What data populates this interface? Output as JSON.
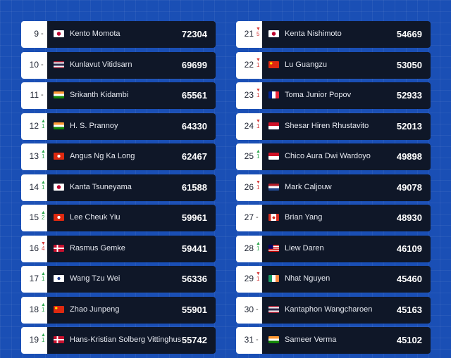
{
  "rankings": {
    "left": [
      {
        "rank": "9",
        "change": {
          "dir": "none",
          "text": "-"
        },
        "flag": "jp",
        "name": "Kento Momota",
        "points": "72304"
      },
      {
        "rank": "10",
        "change": {
          "dir": "none",
          "text": "-"
        },
        "flag": "th",
        "name": "Kunlavut Vitidsarn",
        "points": "69699"
      },
      {
        "rank": "11",
        "change": {
          "dir": "none",
          "text": "-"
        },
        "flag": "in",
        "name": "Srikanth Kidambi",
        "points": "65561"
      },
      {
        "rank": "12",
        "change": {
          "dir": "up",
          "text": "1"
        },
        "flag": "in",
        "name": "H. S. Prannoy",
        "points": "64330"
      },
      {
        "rank": "13",
        "change": {
          "dir": "up",
          "text": "1"
        },
        "flag": "hk",
        "name": "Angus Ng Ka Long",
        "points": "62467"
      },
      {
        "rank": "14",
        "change": {
          "dir": "up",
          "text": "1"
        },
        "flag": "jp",
        "name": "Kanta Tsuneyama",
        "points": "61588"
      },
      {
        "rank": "15",
        "change": {
          "dir": "up",
          "text": "2"
        },
        "flag": "hk",
        "name": "Lee Cheuk Yiu",
        "points": "59961"
      },
      {
        "rank": "16",
        "change": {
          "dir": "down",
          "text": "4"
        },
        "flag": "dk",
        "name": "Rasmus Gemke",
        "points": "59441"
      },
      {
        "rank": "17",
        "change": {
          "dir": "up",
          "text": "1"
        },
        "flag": "tw",
        "name": "Wang Tzu Wei",
        "points": "56336"
      },
      {
        "rank": "18",
        "change": {
          "dir": "up",
          "text": "1"
        },
        "flag": "cn",
        "name": "Zhao Junpeng",
        "points": "55901"
      },
      {
        "rank": "19",
        "change": {
          "dir": "up",
          "text": "1"
        },
        "flag": "dk",
        "name": "Hans-Kristian Solberg Vittinghus",
        "points": "55742"
      }
    ],
    "right": [
      {
        "rank": "21",
        "change": {
          "dir": "down",
          "text": "5"
        },
        "flag": "jp",
        "name": "Kenta Nishimoto",
        "points": "54669"
      },
      {
        "rank": "22",
        "change": {
          "dir": "down",
          "text": "1"
        },
        "flag": "cn",
        "name": "Lu Guangzu",
        "points": "53050"
      },
      {
        "rank": "23",
        "change": {
          "dir": "down",
          "text": "1"
        },
        "flag": "fr",
        "name": "Toma Junior Popov",
        "points": "52933"
      },
      {
        "rank": "24",
        "change": {
          "dir": "down",
          "text": "1"
        },
        "flag": "id",
        "name": "Shesar Hiren Rhustavito",
        "points": "52013"
      },
      {
        "rank": "25",
        "change": {
          "dir": "up",
          "text": "1"
        },
        "flag": "id",
        "name": "Chico Aura Dwi Wardoyo",
        "points": "49898"
      },
      {
        "rank": "26",
        "change": {
          "dir": "down",
          "text": "1"
        },
        "flag": "nl",
        "name": "Mark Caljouw",
        "points": "49078"
      },
      {
        "rank": "27",
        "change": {
          "dir": "none",
          "text": "-"
        },
        "flag": "ca",
        "name": "Brian Yang",
        "points": "48930"
      },
      {
        "rank": "28",
        "change": {
          "dir": "up",
          "text": "1"
        },
        "flag": "my",
        "name": "Liew Daren",
        "points": "46109"
      },
      {
        "rank": "29",
        "change": {
          "dir": "down",
          "text": "1"
        },
        "flag": "ie",
        "name": "Nhat Nguyen",
        "points": "45460"
      },
      {
        "rank": "30",
        "change": {
          "dir": "none",
          "text": "-"
        },
        "flag": "th",
        "name": "Kantaphon Wangcharoen",
        "points": "45163"
      },
      {
        "rank": "31",
        "change": {
          "dir": "none",
          "text": "-"
        },
        "flag": "in",
        "name": "Sameer Verma",
        "points": "45102"
      }
    ]
  },
  "colors": {
    "background": "#1a4fb5",
    "card": "#0f1728",
    "up": "#2fa84f",
    "down": "#d63a3a"
  }
}
